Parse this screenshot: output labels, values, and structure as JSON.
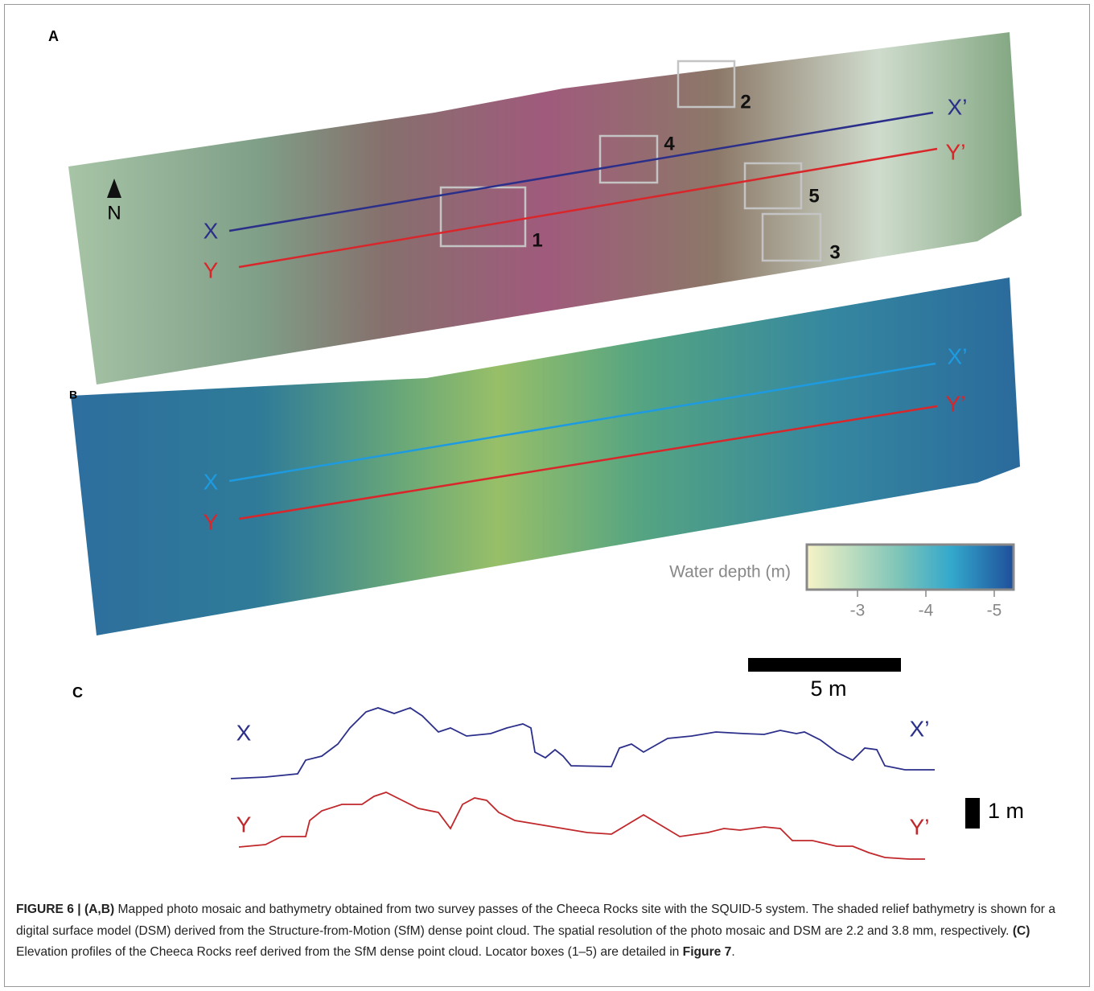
{
  "panels": {
    "A": {
      "label": "A",
      "north": "N",
      "lines": [
        {
          "start": "X",
          "end": "X’",
          "color": "#2b2f8a"
        },
        {
          "start": "Y",
          "end": "Y’",
          "color": "#d9262b"
        }
      ],
      "boxes": [
        "1",
        "2",
        "3",
        "4",
        "5"
      ]
    },
    "B": {
      "label": "B",
      "lines": [
        {
          "start": "X",
          "end": "X’",
          "color": "#1e9be0"
        },
        {
          "start": "Y",
          "end": "Y’",
          "color": "#d9262b"
        }
      ]
    },
    "C": {
      "label": "C",
      "profiles": [
        {
          "start": "X",
          "end": "X’",
          "color": "#2b2f8a"
        },
        {
          "start": "Y",
          "end": "Y’",
          "color": "#c0282b"
        }
      ]
    }
  },
  "colorbar": {
    "label": "Water depth (m)",
    "ticks": [
      -3,
      -4,
      -5
    ]
  },
  "scale_bars": [
    "5 m",
    "1 m"
  ],
  "caption": {
    "segments": [
      {
        "text": "FIGURE 6 | ",
        "bold": true
      },
      {
        "text": "(A,B)",
        "bold": true
      },
      {
        "text": " Mapped photo mosaic and bathymetry obtained from two survey passes of the Cheeca Rocks site with the SQUID-5 system. The shaded relief bathymetry is shown for a digital surface model (DSM) derived from the Structure-from-Motion (SfM) dense point cloud. The spatial resolution of the photo mosaic and DSM are 2.2 and 3.8 mm, respectively. ",
        "bold": false
      },
      {
        "text": "(C)",
        "bold": true
      },
      {
        "text": " Elevation profiles of the Cheeca Rocks reef derived from the SfM dense point cloud. Locator boxes (1–5) are detailed in ",
        "bold": false
      },
      {
        "text": "Figure 7",
        "bold": true
      },
      {
        "text": ".",
        "bold": false
      }
    ]
  }
}
